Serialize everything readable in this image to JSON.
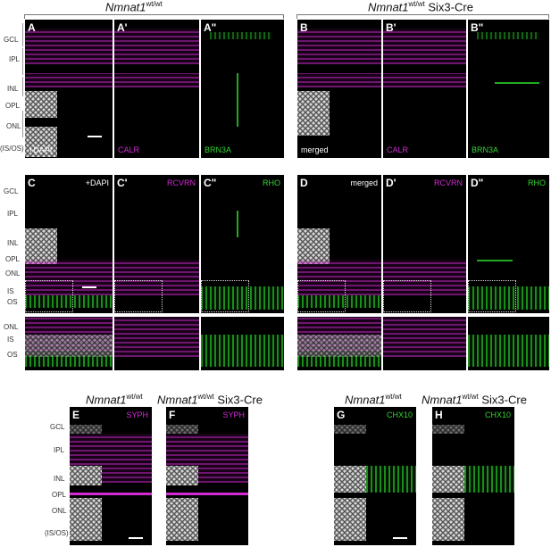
{
  "headers": {
    "top_left": {
      "gene": "Nmnat1",
      "sup": "wt/wt",
      "suffix": ""
    },
    "top_right": {
      "gene": "Nmnat1",
      "sup": "wt/wt",
      "suffix": " Six3-Cre"
    },
    "bot1": {
      "gene": "Nmnat1",
      "sup": "wt/wt",
      "suffix": ""
    },
    "bot2": {
      "gene": "Nmnat1",
      "sup": "wt/wt",
      "suffix": " Six3-Cre"
    },
    "bot3": {
      "gene": "Nmnat1",
      "sup": "wt/wt",
      "suffix": ""
    },
    "bot4": {
      "gene": "Nmnat1",
      "sup": "wt/wt",
      "suffix": " Six3-Cre"
    }
  },
  "row1": {
    "labels": [
      "A",
      "A'",
      "A\"",
      "B",
      "B'",
      "B\""
    ],
    "stains": [
      "+DAPI",
      "CALR",
      "BRN3A",
      "merged",
      "CALR",
      "BRN3A"
    ],
    "layers": [
      "GCL",
      "IPL",
      "INL",
      "OPL",
      "ONL",
      "(IS/OS)"
    ]
  },
  "row2": {
    "labels": [
      "C",
      "C'",
      "C\"",
      "D",
      "D'",
      "D\""
    ],
    "stains": [
      "+DAPI",
      "RCVRN",
      "RHO",
      "merged",
      "RCVRN",
      "RHO"
    ],
    "layers": [
      "GCL",
      "IPL",
      "INL",
      "OPL",
      "ONL",
      "IS",
      "OS"
    ]
  },
  "row3": {
    "layers": [
      "ONL",
      "IS",
      "OS"
    ]
  },
  "row4": {
    "labels": [
      "E",
      "F",
      "G",
      "H"
    ],
    "stains": [
      "SYPH",
      "SYPH",
      "CHX10",
      "CHX10"
    ],
    "layers": [
      "GCL",
      "IPL",
      "INL",
      "OPL",
      "ONL",
      "(IS/OS)"
    ]
  },
  "colors": {
    "magenta": "#d22ad2",
    "green": "#33d633",
    "white": "#ffffff"
  }
}
